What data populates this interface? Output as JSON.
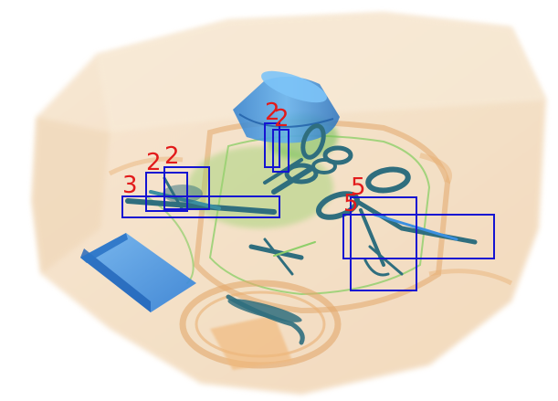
{
  "image": {
    "kind": "x-ray baggage scan"
  },
  "colors": {
    "background": "#ffffff",
    "bag_base": "#f3dcc0",
    "organic": "#e9b074",
    "metal": "#2f6e7e",
    "inorganic_blue": "#3b8fe0",
    "green": "#6fbf54",
    "box_stroke": "#1414d2",
    "label_text": "#e21b1b"
  },
  "detections": [
    {
      "label": "2"
    },
    {
      "label": "2"
    },
    {
      "label": "2"
    },
    {
      "label": "2"
    },
    {
      "label": "3"
    },
    {
      "label": "5"
    },
    {
      "label": "5"
    },
    {
      "label": ""
    }
  ]
}
